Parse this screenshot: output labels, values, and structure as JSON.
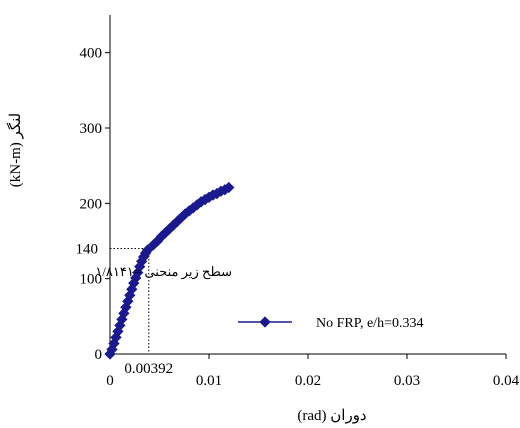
{
  "chart_data": {
    "type": "scatter",
    "xlabel": "دوران (rad)",
    "ylabel": "لنگر (kN-m)",
    "xlim": [
      0,
      0.04
    ],
    "ylim": [
      0,
      450
    ],
    "x_ticks": [
      {
        "value": 0,
        "label": "0"
      },
      {
        "value": 0.01,
        "label": "0.01"
      },
      {
        "value": 0.02,
        "label": "0.02"
      },
      {
        "value": 0.03,
        "label": "0.03"
      },
      {
        "value": 0.04,
        "label": "0.04"
      }
    ],
    "y_ticks": [
      {
        "value": 0,
        "label": "0"
      },
      {
        "value": 100,
        "label": "100"
      },
      {
        "value": 200,
        "label": "200"
      },
      {
        "value": 300,
        "label": "300"
      },
      {
        "value": 400,
        "label": "400"
      }
    ],
    "grid": false,
    "legend_position": "center-right",
    "series": [
      {
        "name": "No FRP, e/h=0.334",
        "color": "#1a1a8c",
        "marker": "diamond",
        "points": [
          [
            0.0,
            0
          ],
          [
            0.0002,
            6
          ],
          [
            0.0004,
            14
          ],
          [
            0.0006,
            22
          ],
          [
            0.0008,
            30
          ],
          [
            0.001,
            38
          ],
          [
            0.0012,
            46
          ],
          [
            0.0014,
            54
          ],
          [
            0.0016,
            62
          ],
          [
            0.0018,
            70
          ],
          [
            0.002,
            78
          ],
          [
            0.0022,
            86
          ],
          [
            0.0024,
            94
          ],
          [
            0.0026,
            101
          ],
          [
            0.0028,
            108
          ],
          [
            0.003,
            116
          ],
          [
            0.0032,
            123
          ],
          [
            0.0034,
            129
          ],
          [
            0.0036,
            134
          ],
          [
            0.0038,
            138
          ],
          [
            0.0044,
            145
          ],
          [
            0.0048,
            150
          ],
          [
            0.0052,
            156
          ],
          [
            0.0056,
            161
          ],
          [
            0.006,
            166
          ],
          [
            0.0064,
            171
          ],
          [
            0.0068,
            176
          ],
          [
            0.0072,
            181
          ],
          [
            0.0076,
            186
          ],
          [
            0.008,
            190
          ],
          [
            0.0084,
            194
          ],
          [
            0.0088,
            198
          ],
          [
            0.0092,
            202
          ],
          [
            0.0096,
            205
          ],
          [
            0.01,
            208
          ],
          [
            0.0104,
            211
          ],
          [
            0.0108,
            213
          ],
          [
            0.0112,
            216
          ],
          [
            0.0116,
            218
          ],
          [
            0.012,
            221
          ]
        ]
      }
    ],
    "annotations": [
      {
        "type": "reference_line",
        "x": 0.00392,
        "y": 140,
        "x_label": "0.00392",
        "y_label": "140"
      },
      {
        "type": "text",
        "text": "سطح زیر منحنی =۱/۸۱۴۱"
      }
    ]
  }
}
